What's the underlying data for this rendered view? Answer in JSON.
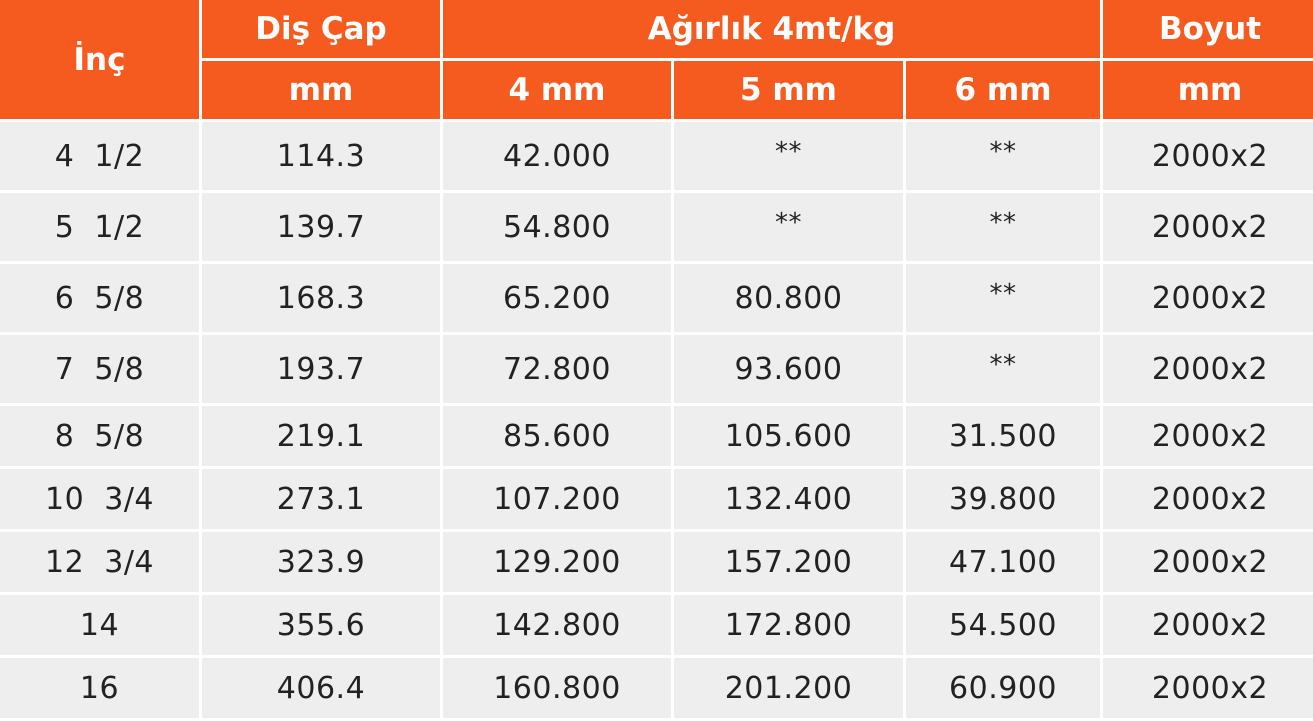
{
  "header": {
    "inc": "İnç",
    "dis_cap": "Diş Çap",
    "agirlik": "Ağırlık 4mt/kg",
    "boyut": "Boyut",
    "dis_cap_unit": "mm",
    "thickness_4": "4 mm",
    "thickness_5": "5 mm",
    "thickness_6": "6 mm",
    "boyut_unit": "mm"
  },
  "rows": [
    {
      "inc": "4  1/2",
      "dis_cap": "114.3",
      "w4": "42.000",
      "w5": "**",
      "w6": "**",
      "boyut": "2000x2"
    },
    {
      "inc": "5  1/2",
      "dis_cap": "139.7",
      "w4": "54.800",
      "w5": "**",
      "w6": "**",
      "boyut": "2000x2"
    },
    {
      "inc": "6  5/8",
      "dis_cap": "168.3",
      "w4": "65.200",
      "w5": "80.800",
      "w6": "**",
      "boyut": "2000x2"
    },
    {
      "inc": "7  5/8",
      "dis_cap": "193.7",
      "w4": "72.800",
      "w5": "93.600",
      "w6": "**",
      "boyut": "2000x2"
    },
    {
      "inc": "8  5/8",
      "dis_cap": "219.1",
      "w4": "85.600",
      "w5": "105.600",
      "w6": "31.500",
      "boyut": "2000x2"
    },
    {
      "inc": "10  3/4",
      "dis_cap": "273.1",
      "w4": "107.200",
      "w5": "132.400",
      "w6": "39.800",
      "boyut": "2000x2"
    },
    {
      "inc": "12  3/4",
      "dis_cap": "323.9",
      "w4": "129.200",
      "w5": "157.200",
      "w6": "47.100",
      "boyut": "2000x2"
    },
    {
      "inc": "14",
      "dis_cap": "355.6",
      "w4": "142.800",
      "w5": "172.800",
      "w6": "54.500",
      "boyut": "2000x2"
    },
    {
      "inc": "16",
      "dis_cap": "406.4",
      "w4": "160.800",
      "w5": "201.200",
      "w6": "60.900",
      "boyut": "2000x2"
    }
  ],
  "colors": {
    "header_bg": "#f55a1e",
    "header_text": "#ffffff",
    "row_bg": "#eeeeee",
    "cell_text": "#222222"
  }
}
